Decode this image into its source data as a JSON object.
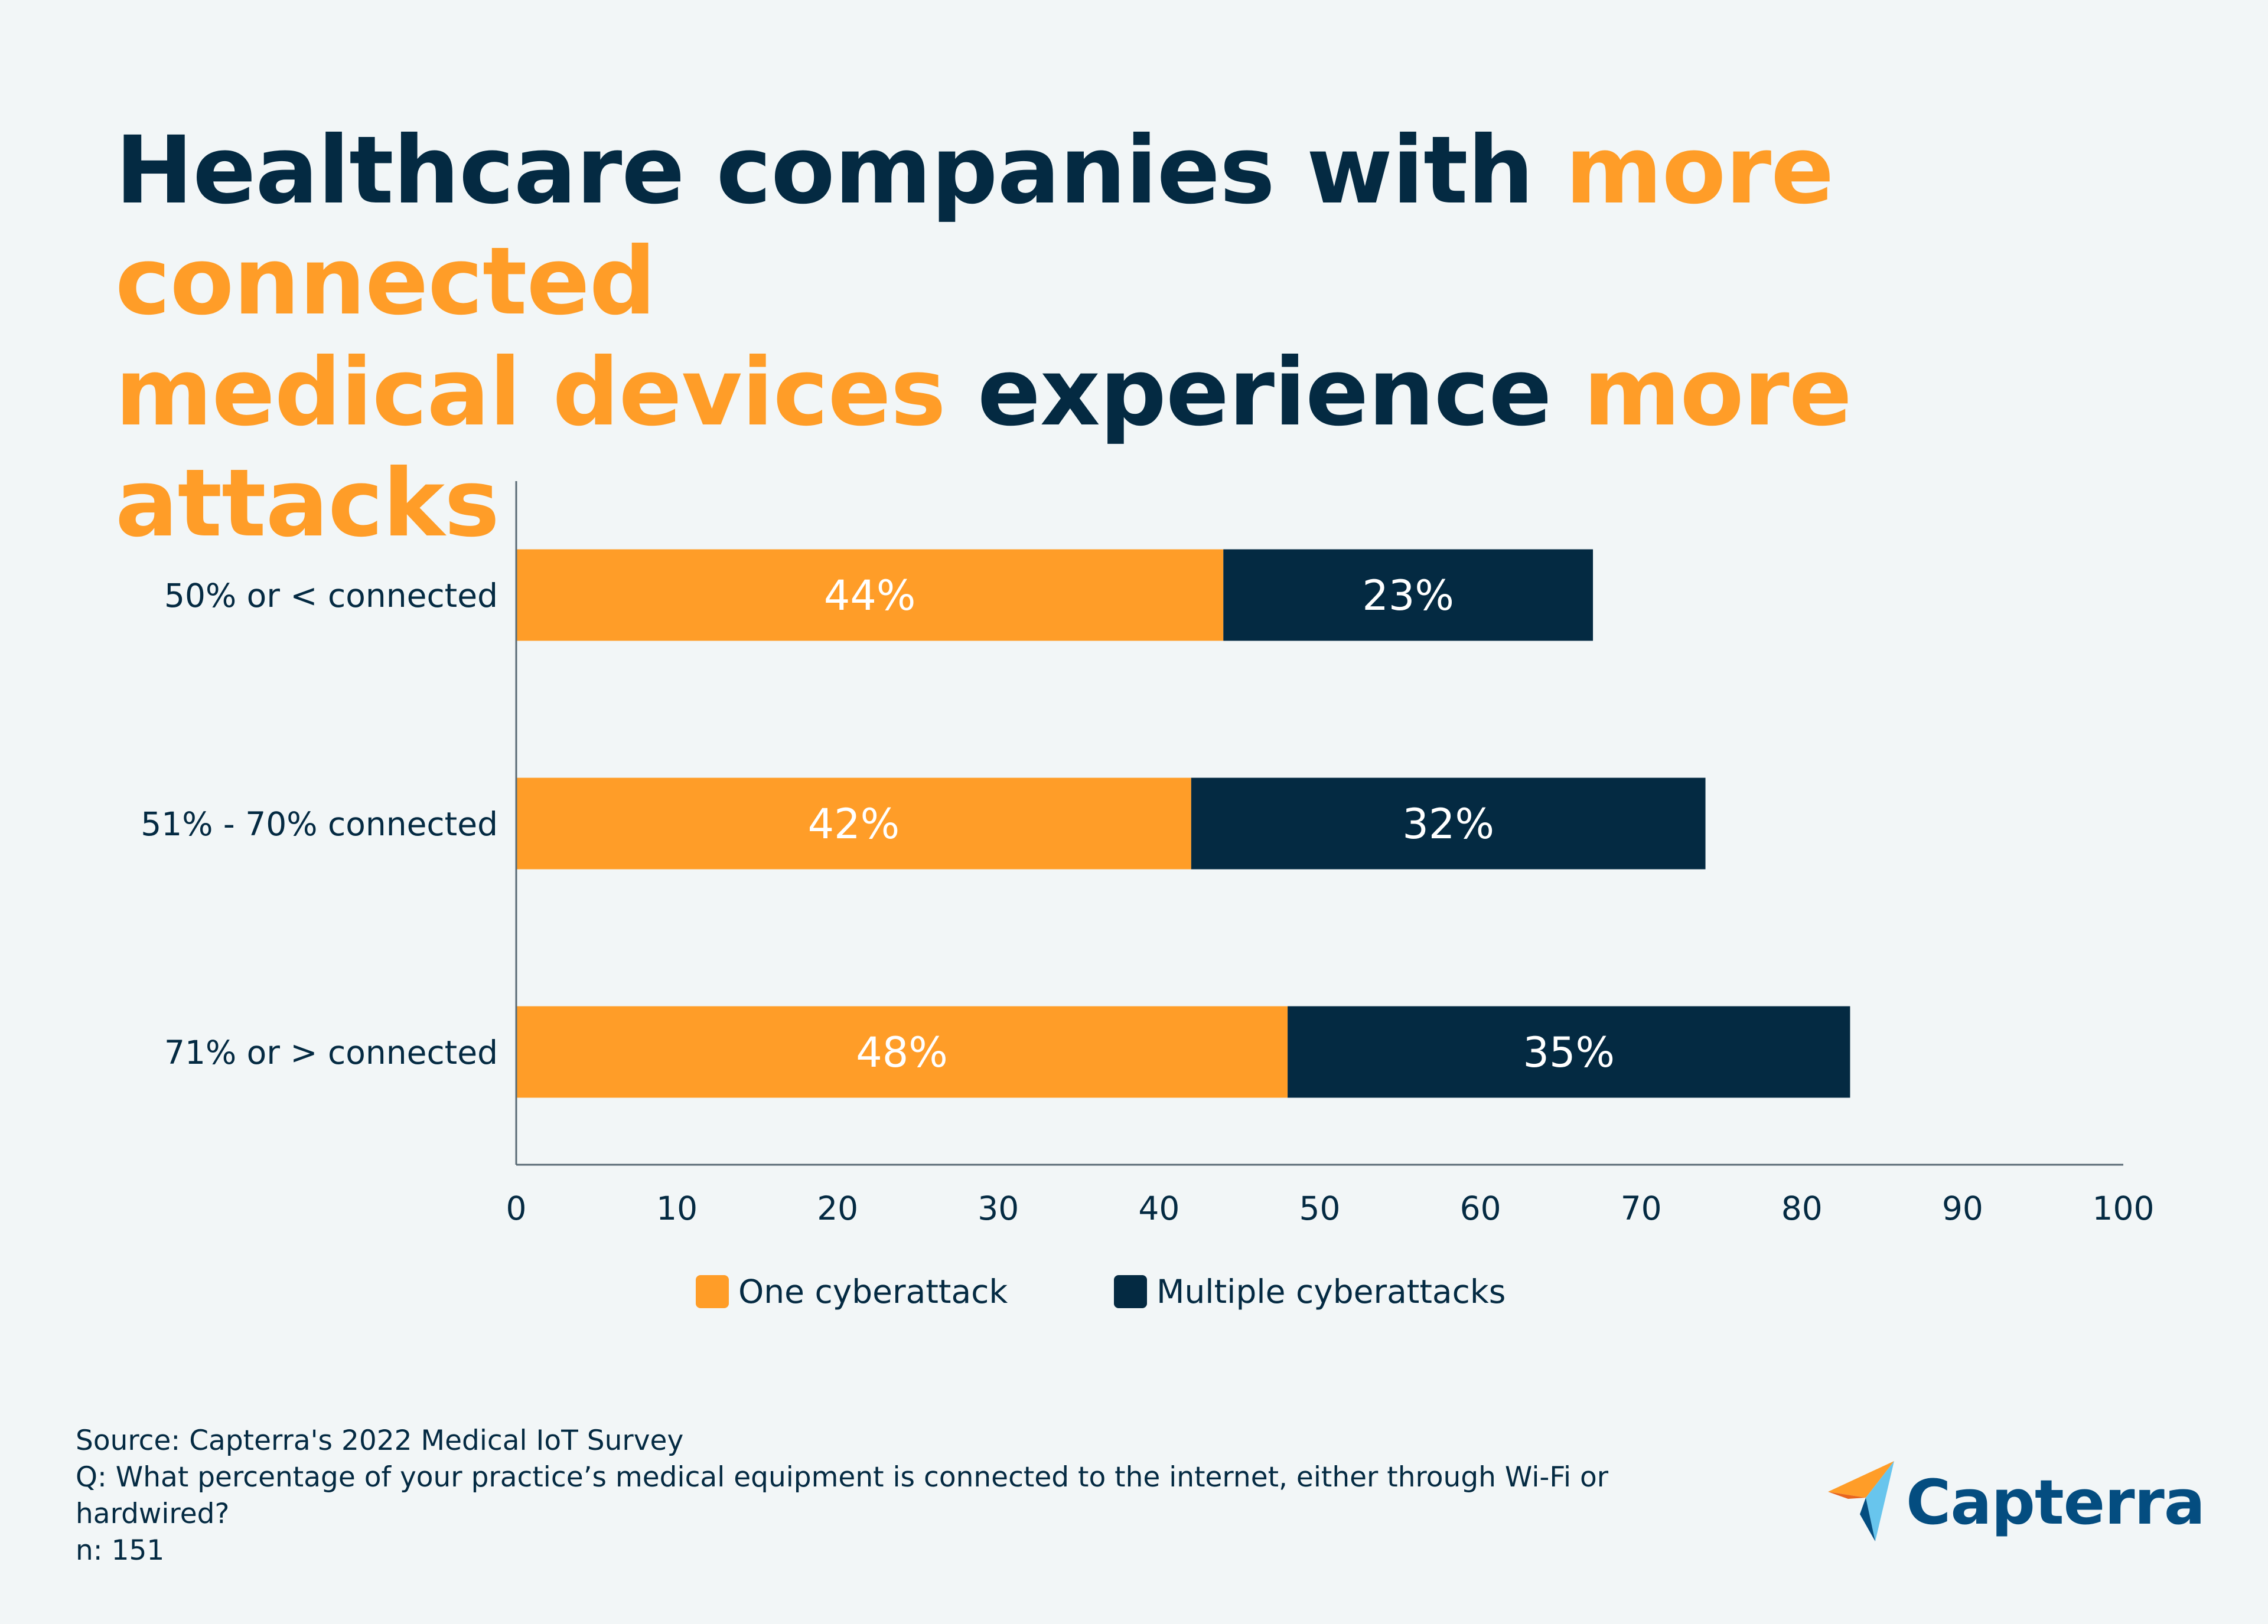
{
  "title": {
    "part1": "Healthcare companies with ",
    "part2": "more connected",
    "part3": "medical devices",
    "part4": " experience ",
    "part5": "more attacks"
  },
  "colors": {
    "dark": "#042a42",
    "orange": "#ff9d28",
    "text": "#042a42",
    "axis": "#5a6b75"
  },
  "chart_data": {
    "type": "bar",
    "orientation": "horizontal",
    "stacked": true,
    "categories": [
      "50% or < connected",
      "51% - 70% connected",
      "71% or > connected"
    ],
    "series": [
      {
        "name": "One cyberattack",
        "values": [
          44,
          42,
          48
        ],
        "labels": [
          "44%",
          "42%",
          "48%"
        ],
        "color": "#ff9d28"
      },
      {
        "name": "Multiple cyberattacks",
        "values": [
          23,
          32,
          35
        ],
        "labels": [
          "23%",
          "32%",
          "35%"
        ],
        "color": "#042a42"
      }
    ],
    "xlim": [
      0,
      100
    ],
    "xticks": [
      "0",
      "10",
      "20",
      "30",
      "40",
      "50",
      "60",
      "70",
      "80",
      "90",
      "100"
    ],
    "xlabel": "",
    "ylabel": "",
    "grid": false,
    "legend": "bottom-center"
  },
  "legend": {
    "one": "One cyberattack",
    "multiple": "Multiple cyberattacks"
  },
  "footnote": {
    "source": "Source: Capterra's 2022 Medical IoT Survey",
    "question_line1": "Q: What percentage of your practice’s medical equipment is connected to the internet, either through Wi-Fi or",
    "question_line2": "hardwired?",
    "n": "n: 151"
  },
  "logo": {
    "text": "Capterra"
  }
}
